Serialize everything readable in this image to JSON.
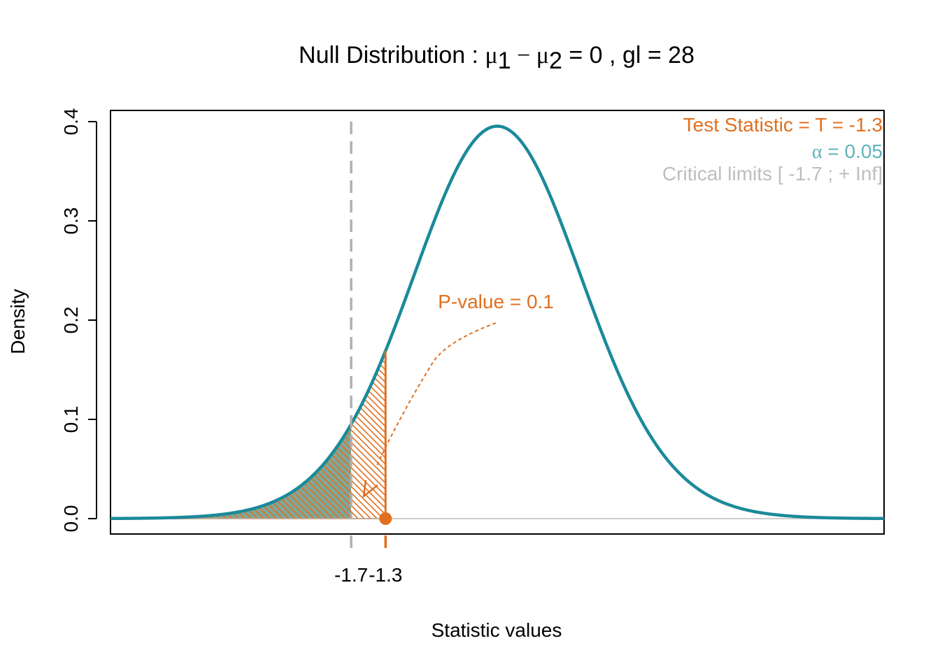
{
  "chart_data": {
    "type": "area",
    "distribution": "Student t",
    "degrees_of_freedom": 28,
    "title": {
      "prefix": "Null Distribution : ",
      "mu": "μ",
      "sub1": "1",
      "minus": " − ",
      "sub2": "2",
      "equals_zero": " = 0 ,   ",
      "gl_label": "gl",
      "gl_equals": " =  28"
    },
    "xlabel": "Statistic values",
    "ylabel": "Density",
    "xlim": [
      -4.5,
      4.5
    ],
    "ylim": [
      0,
      0.4
    ],
    "y_ticks": [
      {
        "value": 0.0,
        "label": "0.0"
      },
      {
        "value": 0.1,
        "label": "0.1"
      },
      {
        "value": 0.2,
        "label": "0.2"
      },
      {
        "value": 0.3,
        "label": "0.3"
      },
      {
        "value": 0.4,
        "label": "0.4"
      }
    ],
    "x_marks": [
      {
        "value": -1.7,
        "label": "-1.7",
        "color": "#bebebe"
      },
      {
        "value": -1.3,
        "label": "-1.3",
        "color": "#e07020"
      }
    ],
    "test_statistic": -1.3,
    "critical_value": -1.7,
    "alpha": 0.05,
    "p_value": 0.1,
    "annotations": {
      "test_statistic": "Test Statistic = T =  -1.3",
      "alpha_symbol": "α",
      "alpha_rest": " =  0.05",
      "critical_limits": "Critical limits  [ -1.7 ; + Inf]",
      "p_value": "P-value = 0.1"
    },
    "grid": false,
    "legend": "none"
  },
  "colors": {
    "curve": "#1b8a9a",
    "test_statistic": "#e07020",
    "alpha": "#5fb3bc",
    "critical": "#bebebe",
    "rejection_fill": "#7fa89a",
    "axis": "#000000"
  }
}
